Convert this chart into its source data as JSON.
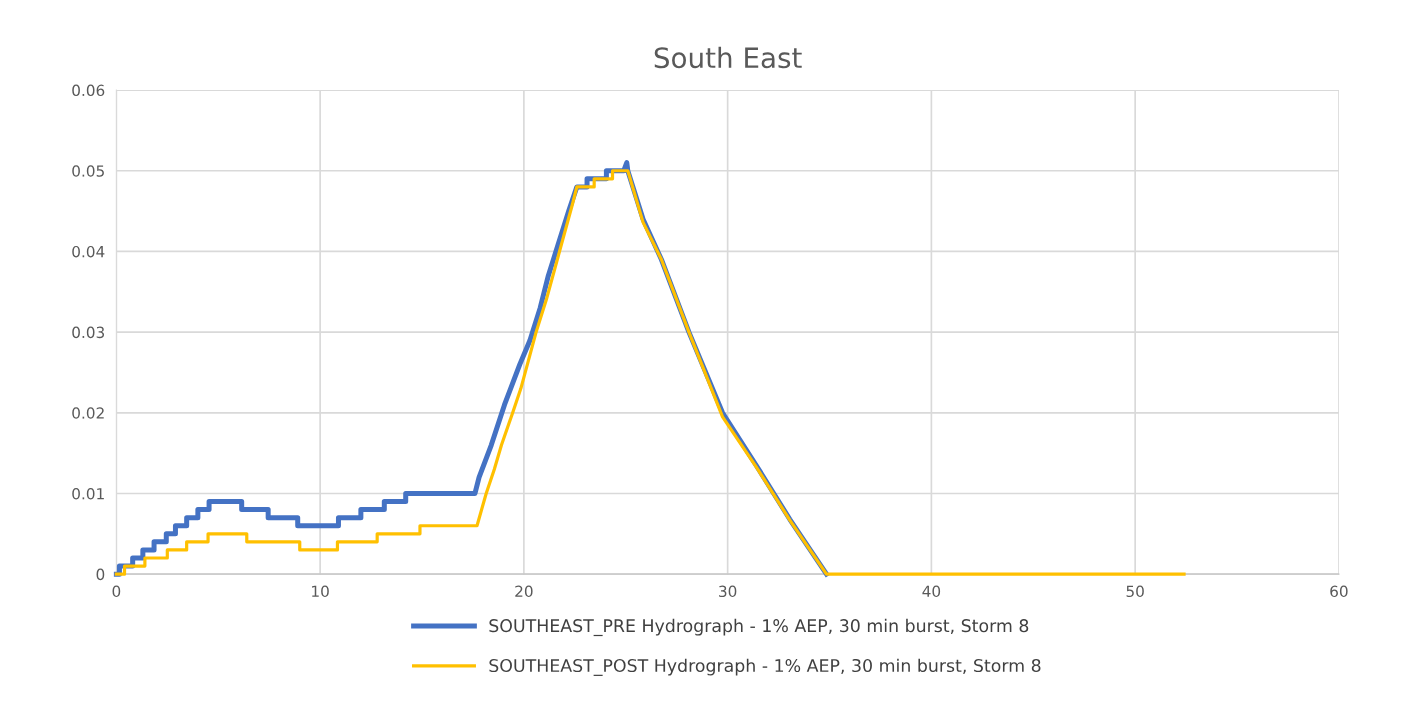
{
  "chart_data": {
    "type": "line",
    "title": "South East",
    "xlim": [
      0,
      60
    ],
    "xticks": [
      0,
      10,
      20,
      30,
      40,
      50,
      60
    ],
    "ylim": [
      0,
      0.06
    ],
    "yticks": [
      {
        "value": 0,
        "label": "0"
      },
      0.01,
      0.02,
      0.03,
      0.04,
      0.05,
      0.06
    ],
    "grid": true,
    "legend": "bottom",
    "marker": "none",
    "line_style": "solid",
    "series": [
      {
        "name": "SOUTHEAST_PRE Hydrograph - 1% AEP, 30 min burst, Storm 8",
        "color": "#4472c4",
        "x": [
          0,
          0.15,
          0.15,
          0.8,
          0.8,
          1.3,
          1.3,
          1.85,
          1.85,
          2.45,
          2.45,
          2.9,
          2.9,
          3.45,
          3.45,
          4.0,
          4.0,
          4.55,
          4.55,
          6.15,
          6.15,
          7.45,
          7.45,
          8.9,
          8.9,
          10.9,
          10.9,
          12.0,
          12.0,
          13.15,
          13.15,
          14.2,
          14.2,
          17.6,
          17.8,
          18.4,
          19.05,
          19.8,
          20.3,
          20.8,
          21.2,
          21.7,
          22.2,
          22.6,
          23.1,
          23.1,
          24.05,
          24.05,
          24.9,
          25.05,
          25.1,
          25.85,
          26.75,
          28.1,
          29.75,
          31.4,
          33.05,
          34.85
        ],
        "values": [
          0,
          0,
          0.001,
          0.001,
          0.002,
          0.002,
          0.003,
          0.003,
          0.004,
          0.004,
          0.005,
          0.005,
          0.006,
          0.006,
          0.007,
          0.007,
          0.008,
          0.008,
          0.009,
          0.009,
          0.008,
          0.008,
          0.007,
          0.007,
          0.006,
          0.006,
          0.007,
          0.007,
          0.008,
          0.008,
          0.009,
          0.009,
          0.01,
          0.01,
          0.012,
          0.016,
          0.021,
          0.026,
          0.029,
          0.033,
          0.037,
          0.041,
          0.045,
          0.048,
          0.048,
          0.049,
          0.049,
          0.05,
          0.05,
          0.051,
          0.05,
          0.044,
          0.039,
          0.03,
          0.02,
          0.0135,
          0.0068,
          0
        ]
      },
      {
        "name": "SOUTHEAST_POST Hydrograph - 1% AEP, 30 min burst, Storm 8",
        "color": "#ffc000",
        "x": [
          0,
          0.4,
          0.4,
          1.4,
          1.4,
          2.5,
          2.5,
          3.45,
          3.45,
          4.5,
          4.5,
          6.4,
          6.4,
          9.0,
          9.0,
          10.85,
          10.85,
          12.8,
          12.8,
          14.9,
          14.9,
          17.7,
          18.15,
          18.55,
          18.9,
          19.45,
          19.85,
          20.6,
          21.1,
          21.75,
          22.4,
          22.6,
          23.45,
          23.45,
          24.35,
          24.35,
          25.1,
          25.85,
          26.75,
          28.1,
          29.75,
          31.4,
          33.05,
          34.85,
          52.4
        ],
        "values": [
          0,
          0,
          0.001,
          0.001,
          0.002,
          0.002,
          0.003,
          0.003,
          0.004,
          0.004,
          0.005,
          0.005,
          0.004,
          0.004,
          0.003,
          0.003,
          0.004,
          0.004,
          0.005,
          0.005,
          0.006,
          0.006,
          0.01,
          0.013,
          0.016,
          0.02,
          0.023,
          0.03,
          0.034,
          0.04,
          0.046,
          0.048,
          0.048,
          0.049,
          0.049,
          0.05,
          0.05,
          0.0436,
          0.039,
          0.03,
          0.0195,
          0.0133,
          0.0067,
          0,
          0
        ]
      }
    ]
  }
}
